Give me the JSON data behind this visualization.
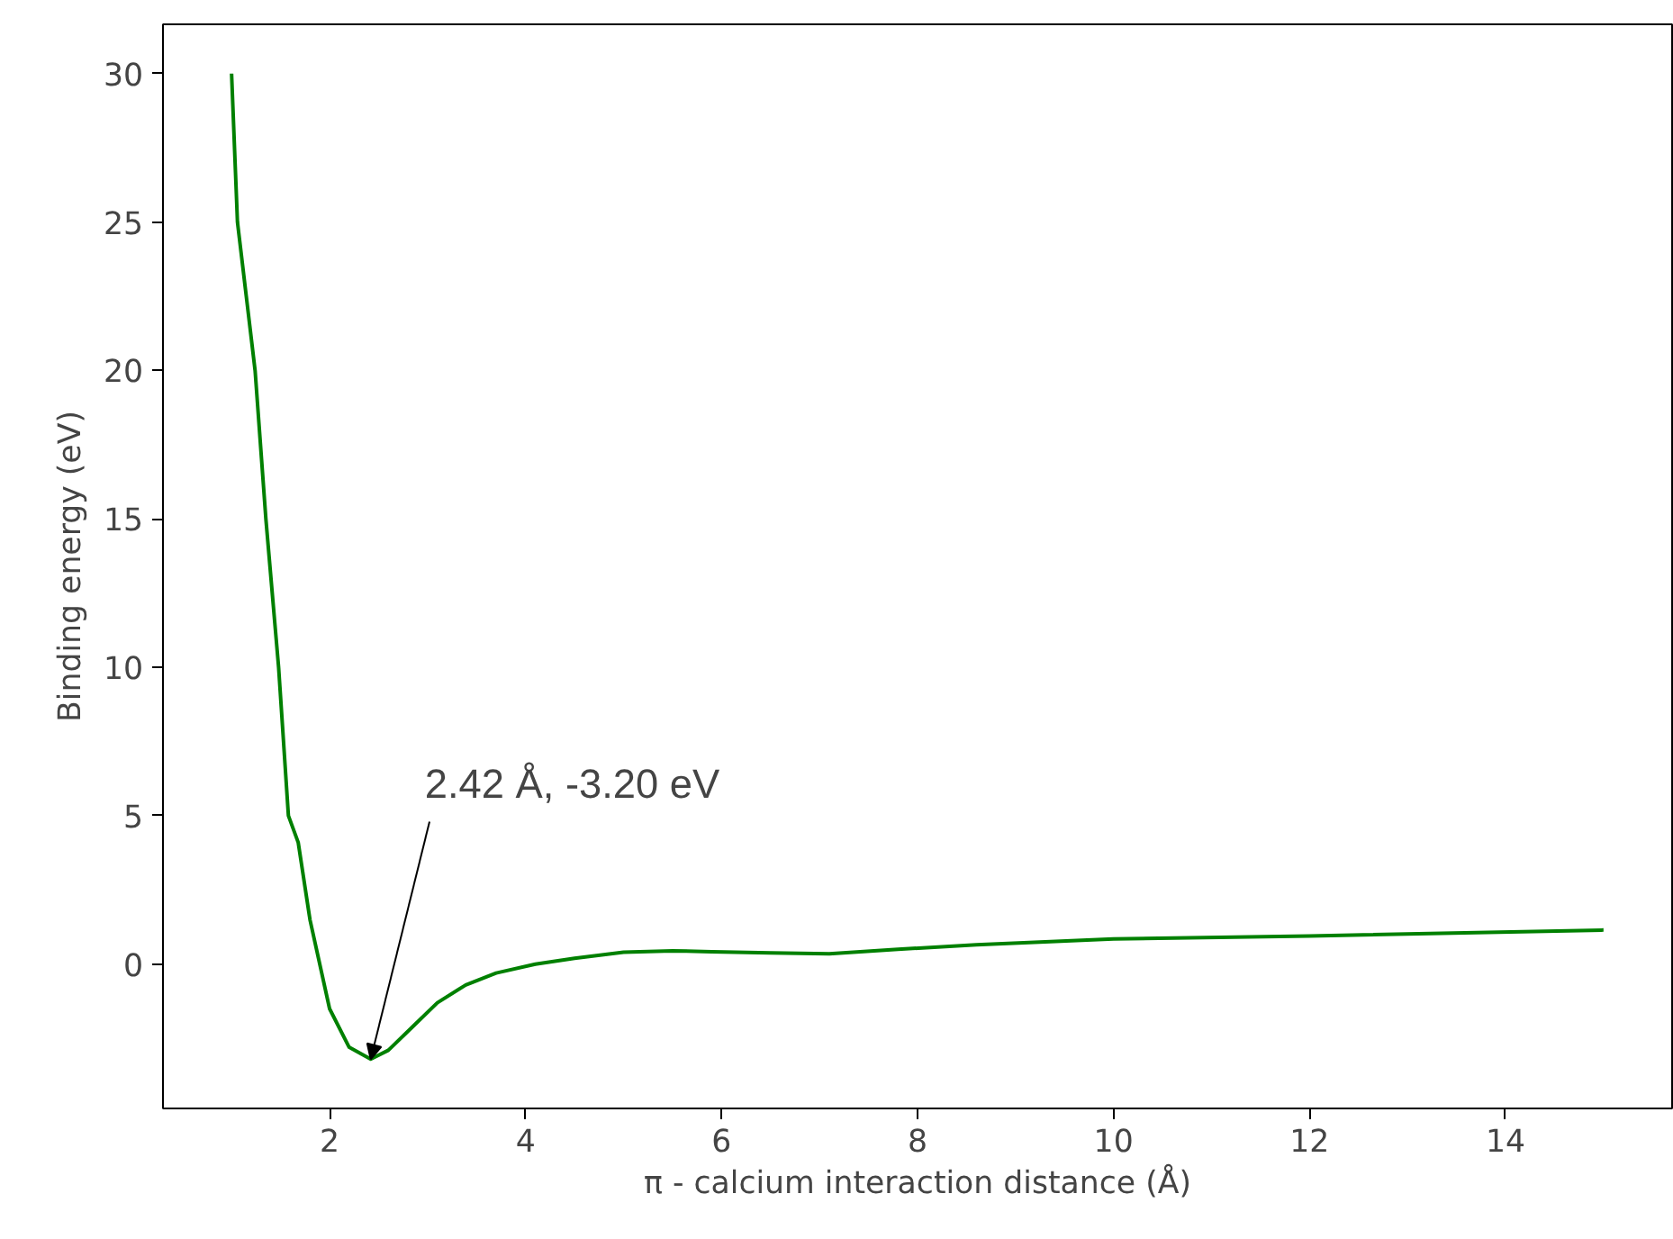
{
  "chart_data": {
    "type": "line",
    "xlabel": "π - calcium interaction distance (Å)",
    "ylabel": "Binding energy (eV)",
    "x": [
      1.0,
      1.06,
      1.15,
      1.24,
      1.35,
      1.48,
      1.58,
      1.68,
      1.8,
      2.0,
      2.2,
      2.42,
      2.6,
      2.85,
      3.1,
      3.39,
      3.7,
      4.1,
      4.5,
      5.0,
      5.5,
      5.9,
      6.5,
      7.1,
      7.8,
      8.6,
      10.0,
      12.0,
      15.0
    ],
    "series": [
      {
        "color": "#008000",
        "values": [
          30.0,
          25.0,
          22.5,
          20.0,
          15.0,
          10.0,
          5.0,
          4.1,
          1.5,
          -1.5,
          -2.8,
          -3.2,
          -2.9,
          -2.1,
          -1.3,
          -0.7,
          -0.3,
          0.0,
          0.2,
          0.4,
          0.45,
          0.42,
          0.38,
          0.35,
          0.5,
          0.65,
          0.85,
          0.95,
          1.15
        ]
      }
    ],
    "xlim": [
      0.3,
      15.7
    ],
    "ylim": [
      -4.86,
      31.66
    ],
    "xticks": [
      2,
      4,
      6,
      8,
      10,
      12,
      14
    ],
    "yticks": [
      0,
      5,
      10,
      15,
      20,
      25,
      30
    ],
    "grid": false,
    "marker": "none",
    "line_style": "solid",
    "annotations": [
      {
        "text": "2.42 Å, -3.20 eV",
        "x": 2.42,
        "y": -3.2
      }
    ]
  }
}
